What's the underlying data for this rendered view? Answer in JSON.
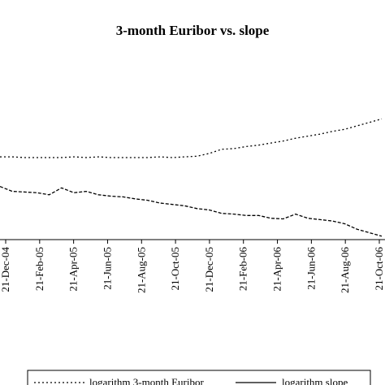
{
  "chart_data": {
    "type": "line",
    "title": "3-month Euribor vs. slope",
    "xlabel": "",
    "ylabel": "",
    "grid": false,
    "legend_position": "bottom",
    "x_tick_labels": [
      "21-Dec-04",
      "21-Feb-05",
      "21-Apr-05",
      "21-Jun-05",
      "21-Aug-05",
      "21-Oct-05",
      "21-Dec-05",
      "21-Feb-06",
      "21-Apr-06",
      "21-Jun-06",
      "21-Aug-06",
      "21-Oct-06"
    ],
    "series": [
      {
        "name": "logarithm 3-month Euribor",
        "style": "dotted",
        "color": "#000000",
        "values": [
          0.05,
          0.05,
          0.04,
          0.04,
          0.04,
          0.04,
          0.05,
          0.04,
          0.05,
          0.04,
          0.04,
          0.04,
          0.04,
          0.05,
          0.04,
          0.05,
          0.06,
          0.1,
          0.16,
          0.17,
          0.2,
          0.22,
          0.25,
          0.28,
          0.32,
          0.35,
          0.38,
          0.42,
          0.45,
          0.5,
          0.55,
          0.6
        ]
      },
      {
        "name": "logarithm slope",
        "style": "dashed",
        "color": "#000000",
        "values": [
          -0.38,
          -0.45,
          -0.46,
          -0.47,
          -0.5,
          -0.4,
          -0.47,
          -0.45,
          -0.5,
          -0.52,
          -0.53,
          -0.56,
          -0.58,
          -0.62,
          -0.64,
          -0.66,
          -0.7,
          -0.72,
          -0.77,
          -0.78,
          -0.8,
          -0.8,
          -0.84,
          -0.85,
          -0.78,
          -0.84,
          -0.86,
          -0.88,
          -0.92,
          -1.0,
          -1.05,
          -1.1
        ]
      }
    ],
    "ylim": [
      -1.15,
      1.5
    ]
  }
}
